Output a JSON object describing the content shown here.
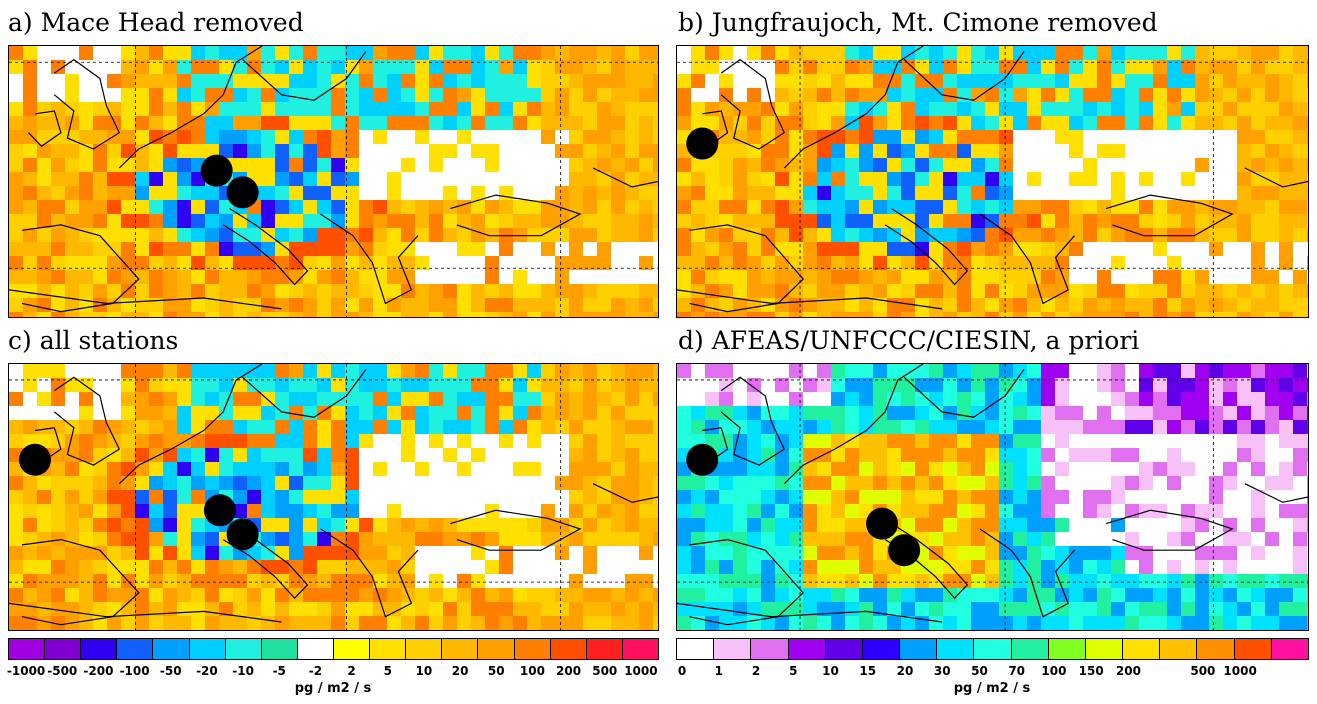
{
  "panels": [
    {
      "id": "a",
      "title": "a) Mace Head removed",
      "stations": [
        [
          0.32,
          0.46
        ],
        [
          0.36,
          0.54
        ]
      ]
    },
    {
      "id": "b",
      "title": "b) Jungfraujoch, Mt. Cimone removed",
      "stations": [
        [
          0.04,
          0.36
        ]
      ]
    },
    {
      "id": "c",
      "title": "c) all stations",
      "stations": [
        [
          0.04,
          0.36
        ],
        [
          0.325,
          0.55
        ],
        [
          0.36,
          0.64
        ]
      ]
    },
    {
      "id": "d",
      "title": "d) AFEAS/UNFCCC/CIESIN, a priori",
      "stations": [
        [
          0.04,
          0.36
        ],
        [
          0.325,
          0.6
        ],
        [
          0.36,
          0.7
        ]
      ]
    }
  ],
  "colorbar_left": {
    "colors": [
      "#a000e0",
      "#8000d0",
      "#3000f0",
      "#1060ff",
      "#00a0ff",
      "#00d0ff",
      "#20f0e0",
      "#20e0a0",
      "#ffffff",
      "#ffff00",
      "#ffe000",
      "#ffd000",
      "#ffb800",
      "#ffa000",
      "#ff8000",
      "#ff5000",
      "#ff2020",
      "#ff1060"
    ],
    "ticks": [
      "-1000",
      "-500",
      "-200",
      "-100",
      "-50",
      "-20",
      "-10",
      "-5",
      "-2",
      "2",
      "5",
      "10",
      "20",
      "50",
      "100",
      "200",
      "500",
      "1000"
    ],
    "unit": "pg / m2 / s"
  },
  "colorbar_right": {
    "colors": [
      "#ffffff",
      "#f8c0f8",
      "#e070f0",
      "#a000f0",
      "#6000e8",
      "#3000ff",
      "#00a0ff",
      "#00e0ff",
      "#20ffe0",
      "#20f0a0",
      "#80ff20",
      "#e0ff00",
      "#ffe000",
      "#ffc000",
      "#ff9000",
      "#ff5000",
      "#ff10a0"
    ],
    "ticks": [
      "0",
      "1",
      "2",
      "5",
      "10",
      "15",
      "20",
      "30",
      "50",
      "70",
      "100",
      "150",
      "200",
      "500",
      "1000"
    ],
    "unit": "pg / m2 / s"
  },
  "chart_data": {
    "type": "heatmap",
    "panels": [
      "a) Mace Head removed",
      "b) Jungfraujoch, Mt. Cimone removed",
      "c) all stations",
      "d) AFEAS/UNFCCC/CIESIN, a priori"
    ],
    "colorbar_left_levels": [
      -1000,
      -500,
      -200,
      -100,
      -50,
      -20,
      -10,
      -5,
      -2,
      2,
      5,
      10,
      20,
      50,
      100,
      200,
      500,
      1000
    ],
    "colorbar_right_levels": [
      0,
      1,
      2,
      5,
      10,
      15,
      20,
      30,
      50,
      70,
      100,
      150,
      200,
      500,
      1000
    ],
    "unit": "pg / m2 / s"
  }
}
